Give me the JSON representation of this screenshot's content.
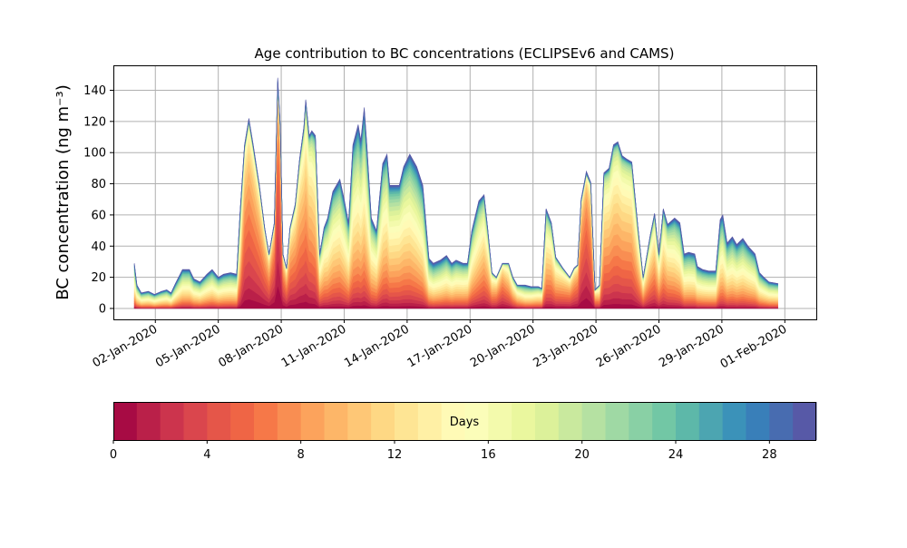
{
  "chart_data": {
    "type": "area",
    "stacked": true,
    "title": "Age contribution to BC concentrations (ECLIPSEv6 and CAMS)",
    "ylabel": "BC concentration (ng m⁻³)",
    "xlabel": "",
    "ylim": [
      -7,
      156
    ],
    "xlim": [
      "2019-12-31 00:00",
      "2020-02-02 12:00"
    ],
    "yticks": [
      0,
      20,
      40,
      60,
      80,
      100,
      120,
      140
    ],
    "xticks": [
      "02-Jan-2020",
      "05-Jan-2020",
      "08-Jan-2020",
      "11-Jan-2020",
      "14-Jan-2020",
      "17-Jan-2020",
      "20-Jan-2020",
      "23-Jan-2020",
      "26-Jan-2020",
      "29-Jan-2020",
      "01-Feb-2020"
    ],
    "xtick_dates": [
      "2020-01-02",
      "2020-01-05",
      "2020-01-08",
      "2020-01-11",
      "2020-01-14",
      "2020-01-17",
      "2020-01-20",
      "2020-01-23",
      "2020-01-26",
      "2020-01-29",
      "2020-02-01"
    ],
    "grid": true,
    "colormap": "Spectral",
    "age_bins_days": 30,
    "total": [
      [
        "2020-01-01 00:00",
        29
      ],
      [
        "2020-01-01 03:00",
        15
      ],
      [
        "2020-01-01 08:00",
        10
      ],
      [
        "2020-01-01 16:00",
        11
      ],
      [
        "2020-01-01 23:00",
        9
      ],
      [
        "2020-01-02 07:00",
        11
      ],
      [
        "2020-01-02 13:00",
        12
      ],
      [
        "2020-01-02 18:00",
        10
      ],
      [
        "2020-01-02 23:00",
        16
      ],
      [
        "2020-01-03 07:00",
        25
      ],
      [
        "2020-01-03 15:00",
        25
      ],
      [
        "2020-01-03 20:00",
        19
      ],
      [
        "2020-01-04 03:00",
        17
      ],
      [
        "2020-01-04 11:00",
        22
      ],
      [
        "2020-01-04 17:00",
        25
      ],
      [
        "2020-01-05 00:00",
        20
      ],
      [
        "2020-01-05 06:00",
        22
      ],
      [
        "2020-01-05 14:00",
        23
      ],
      [
        "2020-01-05 21:00",
        22
      ],
      [
        "2020-01-06 01:00",
        63
      ],
      [
        "2020-01-06 06:00",
        105
      ],
      [
        "2020-01-06 11:00",
        122
      ],
      [
        "2020-01-06 16:00",
        105
      ],
      [
        "2020-01-06 23:00",
        79
      ],
      [
        "2020-01-07 05:00",
        52
      ],
      [
        "2020-01-07 10:00",
        35
      ],
      [
        "2020-01-07 16:00",
        55
      ],
      [
        "2020-01-07 20:00",
        148
      ],
      [
        "2020-01-07 23:00",
        117
      ],
      [
        "2020-01-08 02:00",
        35
      ],
      [
        "2020-01-08 06:00",
        26
      ],
      [
        "2020-01-08 10:00",
        52
      ],
      [
        "2020-01-08 16:00",
        67
      ],
      [
        "2020-01-08 21:00",
        96
      ],
      [
        "2020-01-09 02:00",
        117
      ],
      [
        "2020-01-09 04:00",
        134
      ],
      [
        "2020-01-09 08:00",
        111
      ],
      [
        "2020-01-09 11:00",
        114
      ],
      [
        "2020-01-09 15:00",
        111
      ],
      [
        "2020-01-09 20:00",
        35
      ],
      [
        "2020-01-10 01:00",
        52
      ],
      [
        "2020-01-10 05:00",
        58
      ],
      [
        "2020-01-10 11:00",
        75
      ],
      [
        "2020-01-10 19:00",
        83
      ],
      [
        "2020-01-11 00:00",
        70
      ],
      [
        "2020-01-11 05:00",
        55
      ],
      [
        "2020-01-11 10:00",
        105
      ],
      [
        "2020-01-11 16:00",
        118
      ],
      [
        "2020-01-11 19:00",
        108
      ],
      [
        "2020-01-11 23:00",
        129
      ],
      [
        "2020-01-12 02:00",
        105
      ],
      [
        "2020-01-12 07:00",
        58
      ],
      [
        "2020-01-12 13:00",
        50
      ],
      [
        "2020-01-12 20:00",
        93
      ],
      [
        "2020-01-13 01:00",
        99
      ],
      [
        "2020-01-13 04:00",
        79
      ],
      [
        "2020-01-13 15:00",
        79
      ],
      [
        "2020-01-13 20:00",
        91
      ],
      [
        "2020-01-14 03:00",
        99
      ],
      [
        "2020-01-14 11:00",
        91
      ],
      [
        "2020-01-14 18:00",
        79
      ],
      [
        "2020-01-15 01:00",
        32
      ],
      [
        "2020-01-15 06:00",
        29
      ],
      [
        "2020-01-15 14:00",
        31
      ],
      [
        "2020-01-15 21:00",
        34
      ],
      [
        "2020-01-16 03:00",
        29
      ],
      [
        "2020-01-16 08:00",
        31
      ],
      [
        "2020-01-16 16:00",
        29
      ],
      [
        "2020-01-16 21:00",
        29
      ],
      [
        "2020-01-17 02:00",
        50
      ],
      [
        "2020-01-17 10:00",
        69
      ],
      [
        "2020-01-17 16:00",
        73
      ],
      [
        "2020-01-17 20:00",
        52
      ],
      [
        "2020-01-18 01:00",
        23
      ],
      [
        "2020-01-18 06:00",
        20
      ],
      [
        "2020-01-18 13:00",
        29
      ],
      [
        "2020-01-18 20:00",
        29
      ],
      [
        "2020-01-19 01:00",
        20
      ],
      [
        "2020-01-19 06:00",
        15
      ],
      [
        "2020-01-19 15:00",
        15
      ],
      [
        "2020-01-19 22:00",
        14
      ],
      [
        "2020-01-20 06:00",
        14
      ],
      [
        "2020-01-20 10:00",
        13
      ],
      [
        "2020-01-20 15:00",
        64
      ],
      [
        "2020-01-20 21:00",
        55
      ],
      [
        "2020-01-21 02:00",
        33
      ],
      [
        "2020-01-21 10:00",
        26
      ],
      [
        "2020-01-21 18:00",
        20
      ],
      [
        "2020-01-21 23:00",
        26
      ],
      [
        "2020-01-22 03:00",
        28
      ],
      [
        "2020-01-22 07:00",
        70
      ],
      [
        "2020-01-22 13:00",
        88
      ],
      [
        "2020-01-22 18:00",
        81
      ],
      [
        "2020-01-22 23:00",
        12
      ],
      [
        "2020-01-23 04:00",
        15
      ],
      [
        "2020-01-23 09:00",
        87
      ],
      [
        "2020-01-23 15:00",
        90
      ],
      [
        "2020-01-23 20:00",
        105
      ],
      [
        "2020-01-24 01:00",
        107
      ],
      [
        "2020-01-24 06:00",
        98
      ],
      [
        "2020-01-24 11:00",
        96
      ],
      [
        "2020-01-24 17:00",
        94
      ],
      [
        "2020-01-25 00:00",
        52
      ],
      [
        "2020-01-25 06:00",
        20
      ],
      [
        "2020-01-25 14:00",
        47
      ],
      [
        "2020-01-25 19:00",
        61
      ],
      [
        "2020-01-26 00:00",
        35
      ],
      [
        "2020-01-26 05:00",
        64
      ],
      [
        "2020-01-26 10:00",
        54
      ],
      [
        "2020-01-26 18:00",
        58
      ],
      [
        "2020-01-27 00:00",
        55
      ],
      [
        "2020-01-27 05:00",
        35
      ],
      [
        "2020-01-27 10:00",
        36
      ],
      [
        "2020-01-27 17:00",
        35
      ],
      [
        "2020-01-27 20:00",
        27
      ],
      [
        "2020-01-28 02:00",
        25
      ],
      [
        "2020-01-28 09:00",
        24
      ],
      [
        "2020-01-28 17:00",
        24
      ],
      [
        "2020-01-28 22:00",
        57
      ],
      [
        "2020-01-29 01:00",
        60
      ],
      [
        "2020-01-29 06:00",
        42
      ],
      [
        "2020-01-29 12:00",
        46
      ],
      [
        "2020-01-29 17:00",
        41
      ],
      [
        "2020-01-30 00:00",
        45
      ],
      [
        "2020-01-30 06:00",
        40
      ],
      [
        "2020-01-30 14:00",
        35
      ],
      [
        "2020-01-30 19:00",
        23
      ],
      [
        "2020-01-31 00:00",
        20
      ],
      [
        "2020-01-31 06:00",
        17
      ],
      [
        "2020-01-31 16:00",
        16
      ]
    ],
    "dominant_age_days": [
      [
        "2020-01-01 00:00",
        14
      ],
      [
        "2020-01-05 21:00",
        14
      ],
      [
        "2020-01-06 06:00",
        6
      ],
      [
        "2020-01-07 10:00",
        6
      ],
      [
        "2020-01-07 20:00",
        3
      ],
      [
        "2020-01-08 06:00",
        6
      ],
      [
        "2020-01-09 04:00",
        8
      ],
      [
        "2020-01-10 05:00",
        12
      ],
      [
        "2020-01-11 16:00",
        13
      ],
      [
        "2020-01-13 15:00",
        12
      ],
      [
        "2020-01-15 06:00",
        15
      ],
      [
        "2020-01-17 10:00",
        12
      ],
      [
        "2020-01-18 13:00",
        6
      ],
      [
        "2020-01-19 15:00",
        14
      ],
      [
        "2020-01-20 15:00",
        11
      ],
      [
        "2020-01-22 13:00",
        4
      ],
      [
        "2020-01-23 04:00",
        9
      ],
      [
        "2020-01-24 01:00",
        9
      ],
      [
        "2020-01-25 19:00",
        9
      ],
      [
        "2020-01-27 05:00",
        14
      ],
      [
        "2020-01-31 16:00",
        14
      ]
    ],
    "colorbar": {
      "label": "Days",
      "ticks": [
        0,
        4,
        8,
        12,
        16,
        20,
        24,
        28
      ],
      "range": [
        0,
        30
      ]
    }
  }
}
